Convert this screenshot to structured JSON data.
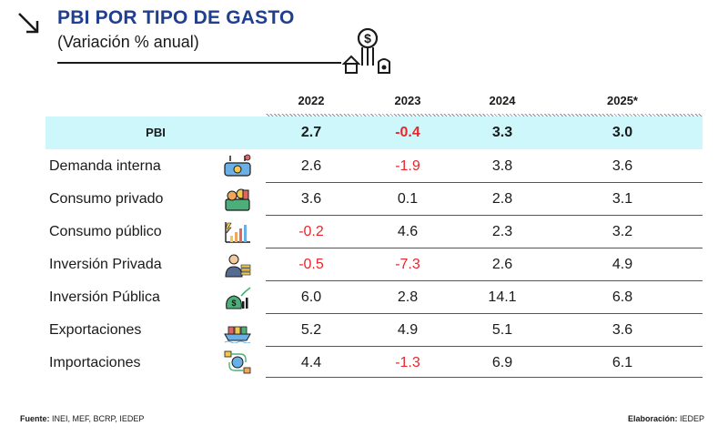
{
  "header": {
    "title": "PBI POR TIPO DE GASTO",
    "subtitle": "(Variación % anual)"
  },
  "columns": [
    "2022",
    "2023",
    "2024",
    "2025*"
  ],
  "pbi": {
    "label": "PBI",
    "values": [
      "2.7",
      "-0.4",
      "3.3",
      "3.0"
    ]
  },
  "rows": [
    {
      "label": "Demanda interna",
      "icon": "demand-icon",
      "values": [
        "2.6",
        "-1.9",
        "3.8",
        "3.6"
      ]
    },
    {
      "label": "Consumo privado",
      "icon": "private-consumption-icon",
      "values": [
        "3.6",
        "0.1",
        "2.8",
        "3.1"
      ]
    },
    {
      "label": "Consumo público",
      "icon": "public-consumption-icon",
      "values": [
        "-0.2",
        "4.6",
        "2.3",
        "3.2"
      ]
    },
    {
      "label": "Inversión Privada",
      "icon": "private-investment-icon",
      "values": [
        "-0.5",
        "-7.3",
        "2.6",
        "4.9"
      ]
    },
    {
      "label": "Inversión Pública",
      "icon": "public-investment-icon",
      "values": [
        "6.0",
        "2.8",
        "14.1",
        "6.8"
      ]
    },
    {
      "label": "Exportaciones",
      "icon": "exports-icon",
      "values": [
        "5.2",
        "4.9",
        "5.1",
        "3.6"
      ]
    },
    {
      "label": "Importaciones",
      "icon": "imports-icon",
      "values": [
        "4.4",
        "-1.3",
        "6.9",
        "6.1"
      ]
    }
  ],
  "footer": {
    "source_label": "Fuente:",
    "source_text": " INEI, MEF, BCRP, IEDEP",
    "credit_label": "Elaboración:",
    "credit_text": " IEDEP"
  },
  "colors": {
    "title": "#1f3f8f",
    "negative": "#e8262b",
    "highlight": "#cdf7fb"
  }
}
